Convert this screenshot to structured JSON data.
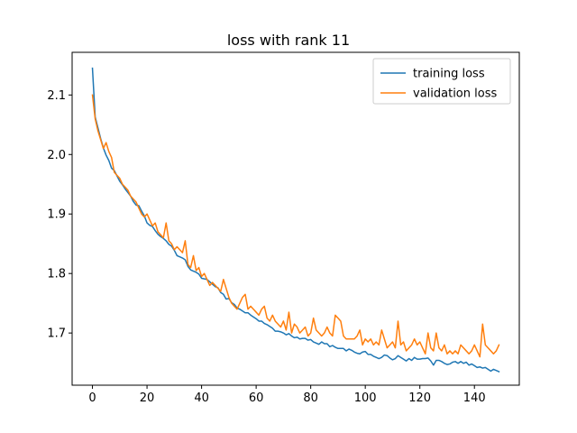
{
  "chart_data": {
    "type": "line",
    "title": "loss with rank 11",
    "xlabel": "",
    "ylabel": "",
    "xlim": [
      -7.45,
      156.45
    ],
    "ylim": [
      1.6123,
      2.1717
    ],
    "xticks": [
      0,
      20,
      40,
      60,
      80,
      100,
      120,
      140
    ],
    "yticks": [
      1.7,
      1.8,
      1.9,
      2.0,
      2.1
    ],
    "ytick_labels": [
      "1.7",
      "1.8",
      "1.9",
      "2.0",
      "2.1"
    ],
    "grid": false,
    "legend_position": "upper right",
    "series": [
      {
        "name": "training loss",
        "color": "#1f77b4",
        "values": [
          2.145,
          2.063,
          2.045,
          2.027,
          2.011,
          1.999,
          1.99,
          1.977,
          1.973,
          1.964,
          1.955,
          1.949,
          1.942,
          1.936,
          1.93,
          1.921,
          1.915,
          1.914,
          1.905,
          1.897,
          1.885,
          1.881,
          1.879,
          1.872,
          1.866,
          1.862,
          1.859,
          1.855,
          1.849,
          1.846,
          1.839,
          1.83,
          1.828,
          1.826,
          1.823,
          1.812,
          1.806,
          1.804,
          1.802,
          1.799,
          1.792,
          1.791,
          1.79,
          1.786,
          1.782,
          1.778,
          1.776,
          1.768,
          1.765,
          1.757,
          1.758,
          1.751,
          1.748,
          1.742,
          1.74,
          1.737,
          1.734,
          1.734,
          1.73,
          1.727,
          1.724,
          1.72,
          1.72,
          1.716,
          1.714,
          1.711,
          1.708,
          1.703,
          1.703,
          1.702,
          1.7,
          1.697,
          1.699,
          1.695,
          1.692,
          1.693,
          1.69,
          1.691,
          1.691,
          1.688,
          1.689,
          1.685,
          1.683,
          1.681,
          1.685,
          1.682,
          1.682,
          1.677,
          1.679,
          1.676,
          1.674,
          1.674,
          1.674,
          1.67,
          1.673,
          1.671,
          1.668,
          1.666,
          1.665,
          1.668,
          1.669,
          1.664,
          1.664,
          1.661,
          1.659,
          1.657,
          1.659,
          1.663,
          1.662,
          1.658,
          1.655,
          1.657,
          1.662,
          1.659,
          1.656,
          1.653,
          1.657,
          1.654,
          1.659,
          1.656,
          1.656,
          1.657,
          1.657,
          1.658,
          1.653,
          1.646,
          1.654,
          1.654,
          1.652,
          1.649,
          1.647,
          1.648,
          1.651,
          1.652,
          1.649,
          1.652,
          1.649,
          1.651,
          1.646,
          1.648,
          1.645,
          1.642,
          1.643,
          1.641,
          1.642,
          1.639,
          1.636,
          1.639,
          1.637,
          1.635
        ]
      },
      {
        "name": "validation loss",
        "color": "#ff7f0e",
        "values": [
          2.1,
          2.06,
          2.04,
          2.025,
          2.01,
          2.02,
          2.005,
          1.995,
          1.97,
          1.965,
          1.96,
          1.95,
          1.945,
          1.94,
          1.93,
          1.925,
          1.92,
          1.91,
          1.9,
          1.895,
          1.9,
          1.89,
          1.88,
          1.885,
          1.87,
          1.865,
          1.86,
          1.885,
          1.855,
          1.85,
          1.84,
          1.845,
          1.84,
          1.835,
          1.855,
          1.815,
          1.81,
          1.83,
          1.805,
          1.81,
          1.795,
          1.8,
          1.79,
          1.78,
          1.785,
          1.78,
          1.775,
          1.77,
          1.79,
          1.775,
          1.76,
          1.75,
          1.745,
          1.74,
          1.75,
          1.76,
          1.765,
          1.74,
          1.745,
          1.74,
          1.735,
          1.73,
          1.74,
          1.745,
          1.725,
          1.72,
          1.73,
          1.72,
          1.715,
          1.71,
          1.72,
          1.705,
          1.735,
          1.7,
          1.715,
          1.71,
          1.7,
          1.705,
          1.71,
          1.695,
          1.7,
          1.725,
          1.705,
          1.7,
          1.695,
          1.7,
          1.71,
          1.7,
          1.695,
          1.73,
          1.725,
          1.72,
          1.695,
          1.69,
          1.69,
          1.69,
          1.69,
          1.695,
          1.705,
          1.68,
          1.69,
          1.685,
          1.69,
          1.68,
          1.685,
          1.68,
          1.705,
          1.69,
          1.675,
          1.68,
          1.685,
          1.675,
          1.72,
          1.68,
          1.685,
          1.67,
          1.675,
          1.68,
          1.69,
          1.68,
          1.685,
          1.675,
          1.665,
          1.7,
          1.675,
          1.67,
          1.7,
          1.675,
          1.67,
          1.68,
          1.665,
          1.67,
          1.665,
          1.67,
          1.665,
          1.68,
          1.675,
          1.67,
          1.665,
          1.67,
          1.68,
          1.67,
          1.66,
          1.715,
          1.68,
          1.675,
          1.67,
          1.665,
          1.67,
          1.68
        ]
      }
    ]
  }
}
